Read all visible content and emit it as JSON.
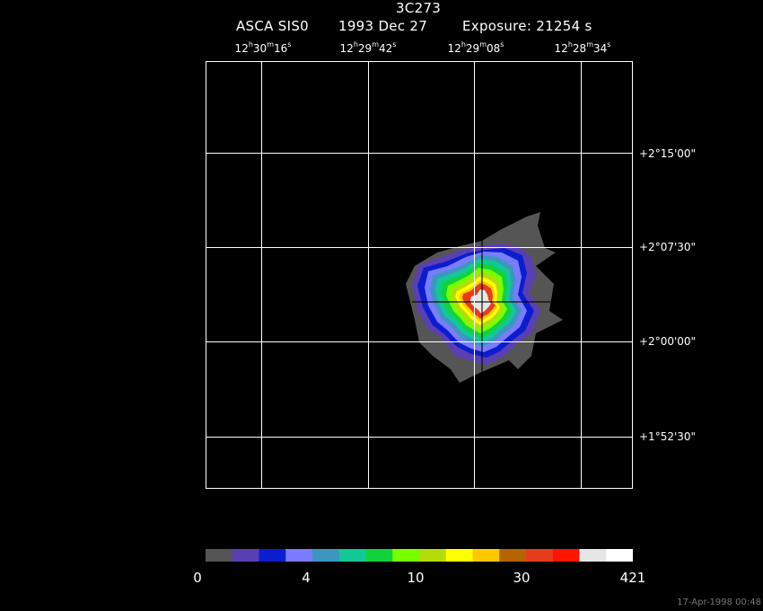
{
  "header": {
    "object": "3C273",
    "instrument": "ASCA SIS0",
    "date": "1993 Dec 27",
    "exposure": "Exposure: 21254 s"
  },
  "ra_ticks": [
    {
      "h": "12",
      "m": "30",
      "s": "16"
    },
    {
      "h": "12",
      "m": "29",
      "s": "42"
    },
    {
      "h": "12",
      "m": "29",
      "s": "08"
    },
    {
      "h": "12",
      "m": "28",
      "s": "34"
    }
  ],
  "dec_ticks": [
    "+2°15'00\"",
    "+2°07'30\"",
    "+2°00'00\"",
    "+1°52'30\""
  ],
  "colorbar": {
    "colors": [
      "#555555",
      "#5a3fb4",
      "#0a1ed0",
      "#7b7bff",
      "#3c96c0",
      "#12c896",
      "#12d23c",
      "#78ff00",
      "#b4dc0a",
      "#ffff00",
      "#ffc800",
      "#b46400",
      "#e63c1e",
      "#ff1400",
      "#e6e6e6",
      "#ffffff"
    ],
    "labels": [
      "0",
      "4",
      "10",
      "30",
      "421"
    ]
  },
  "timestamp": "17-Apr-1998 00:48"
}
